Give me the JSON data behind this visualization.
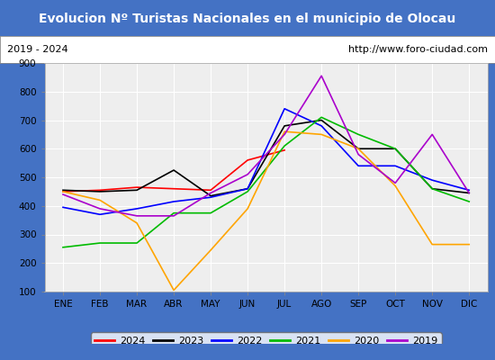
{
  "title": "Evolucion Nº Turistas Nacionales en el municipio de Olocau",
  "subtitle_left": "2019 - 2024",
  "subtitle_right": "http://www.foro-ciudad.com",
  "title_bg": "#4472c4",
  "title_color": "white",
  "months": [
    "ENE",
    "FEB",
    "MAR",
    "ABR",
    "MAY",
    "JUN",
    "JUL",
    "AGO",
    "SEP",
    "OCT",
    "NOV",
    "DIC"
  ],
  "ylim": [
    100,
    900
  ],
  "yticks": [
    100,
    200,
    300,
    400,
    500,
    600,
    700,
    800,
    900
  ],
  "series": {
    "2024": {
      "color": "#ff0000",
      "data": [
        450,
        455,
        465,
        460,
        455,
        560,
        595,
        null,
        null,
        null,
        null,
        null
      ]
    },
    "2023": {
      "color": "#000000",
      "data": [
        455,
        450,
        455,
        525,
        435,
        460,
        680,
        700,
        600,
        600,
        460,
        445
      ]
    },
    "2022": {
      "color": "#0000ff",
      "data": [
        395,
        370,
        390,
        415,
        430,
        460,
        740,
        680,
        540,
        540,
        490,
        455
      ]
    },
    "2021": {
      "color": "#00bb00",
      "data": [
        255,
        270,
        270,
        375,
        375,
        450,
        610,
        710,
        650,
        600,
        460,
        415
      ]
    },
    "2020": {
      "color": "#ffa500",
      "data": [
        450,
        420,
        340,
        105,
        245,
        390,
        660,
        650,
        600,
        470,
        265,
        265
      ]
    },
    "2019": {
      "color": "#aa00cc",
      "data": [
        440,
        390,
        365,
        365,
        445,
        510,
        650,
        855,
        580,
        480,
        650,
        445
      ]
    }
  },
  "legend_order": [
    "2024",
    "2023",
    "2022",
    "2021",
    "2020",
    "2019"
  ],
  "plot_bg": "#eeeeee",
  "grid_color": "#ffffff"
}
